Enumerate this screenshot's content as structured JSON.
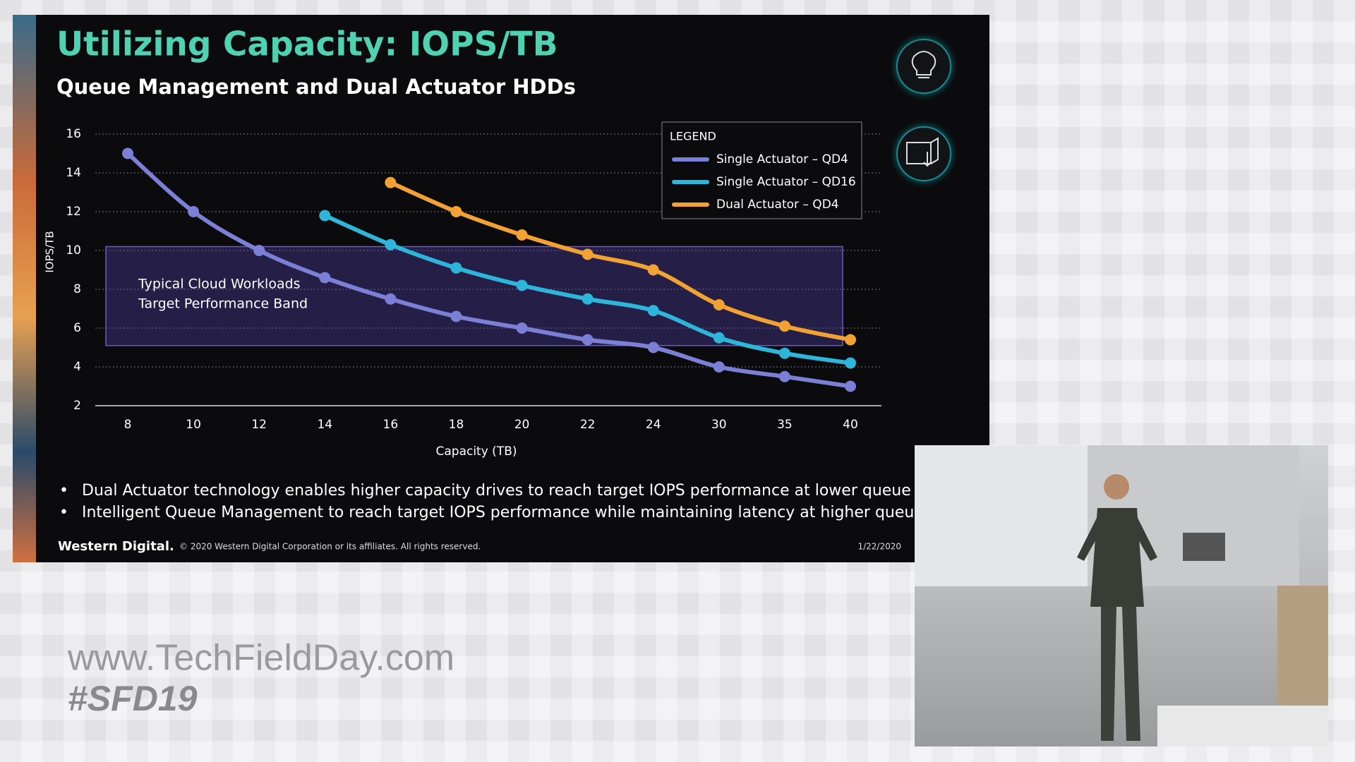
{
  "slide": {
    "title": "Utilizing Capacity: IOPS/TB",
    "subtitle": "Queue Management and Dual Actuator HDDs",
    "bullets": [
      "Dual Actuator technology enables higher capacity drives to reach target IOPS performance at lower queue depths",
      "Intelligent Queue Management to reach target IOPS performance while maintaining latency at higher queue depths"
    ],
    "brand": "Western Digital.",
    "copyright": "© 2020 Western Digital Corporation or its affiliates. All rights reserved.",
    "date": "1/22/2020"
  },
  "overlay": {
    "website": "www.TechFieldDay.com",
    "hashtag": "#SFD19"
  },
  "chart_data": {
    "type": "line",
    "x_label": "Capacity (TB)",
    "y_label": "IOPS/TB",
    "legend_title": "LEGEND",
    "legend_position": "upper right",
    "grid": true,
    "categories": [
      "8",
      "10",
      "12",
      "14",
      "16",
      "18",
      "20",
      "22",
      "24",
      "30",
      "35",
      "40"
    ],
    "ylim": [
      2,
      16
    ],
    "yticks": [
      2,
      4,
      6,
      8,
      10,
      12,
      14,
      16
    ],
    "series": [
      {
        "name": "Single Actuator – QD4",
        "color": "#7b80d6",
        "values": [
          15,
          12,
          10,
          8.6,
          7.5,
          6.6,
          6,
          5.4,
          5,
          4,
          3.5,
          3
        ]
      },
      {
        "name": "Single Actuator – QD16",
        "color": "#2db6da",
        "values": [
          null,
          null,
          null,
          11.8,
          10.3,
          9.1,
          8.2,
          7.5,
          6.9,
          5.5,
          4.7,
          4.2
        ]
      },
      {
        "name": "Dual Actuator – QD4",
        "color": "#f2a133",
        "values": [
          null,
          null,
          null,
          null,
          13.5,
          12,
          10.8,
          9.8,
          9,
          7.2,
          6.1,
          5.4
        ]
      }
    ],
    "target_band": {
      "label": [
        "Typical Cloud Workloads",
        "Target Performance Band"
      ],
      "range": [
        5.1,
        10.2
      ]
    }
  }
}
